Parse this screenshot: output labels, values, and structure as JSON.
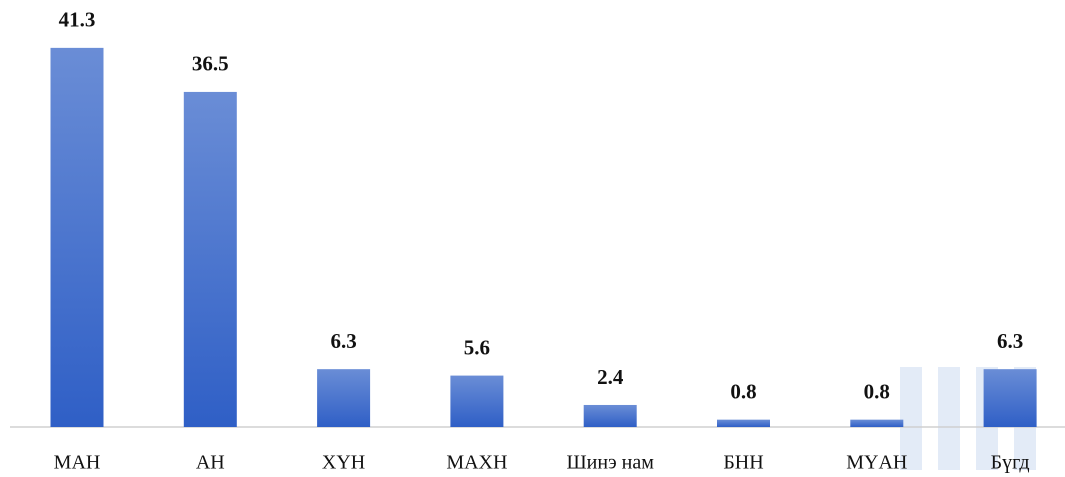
{
  "chart_data": {
    "type": "bar",
    "categories": [
      "МАН",
      "АН",
      "ХҮН",
      "МАХН",
      "Шинэ нам",
      "БНН",
      "МҮАН",
      "Бүгд"
    ],
    "values": [
      41.3,
      36.5,
      6.3,
      5.6,
      2.4,
      0.8,
      0.8,
      6.3
    ],
    "color": "#3d6ccb"
  }
}
